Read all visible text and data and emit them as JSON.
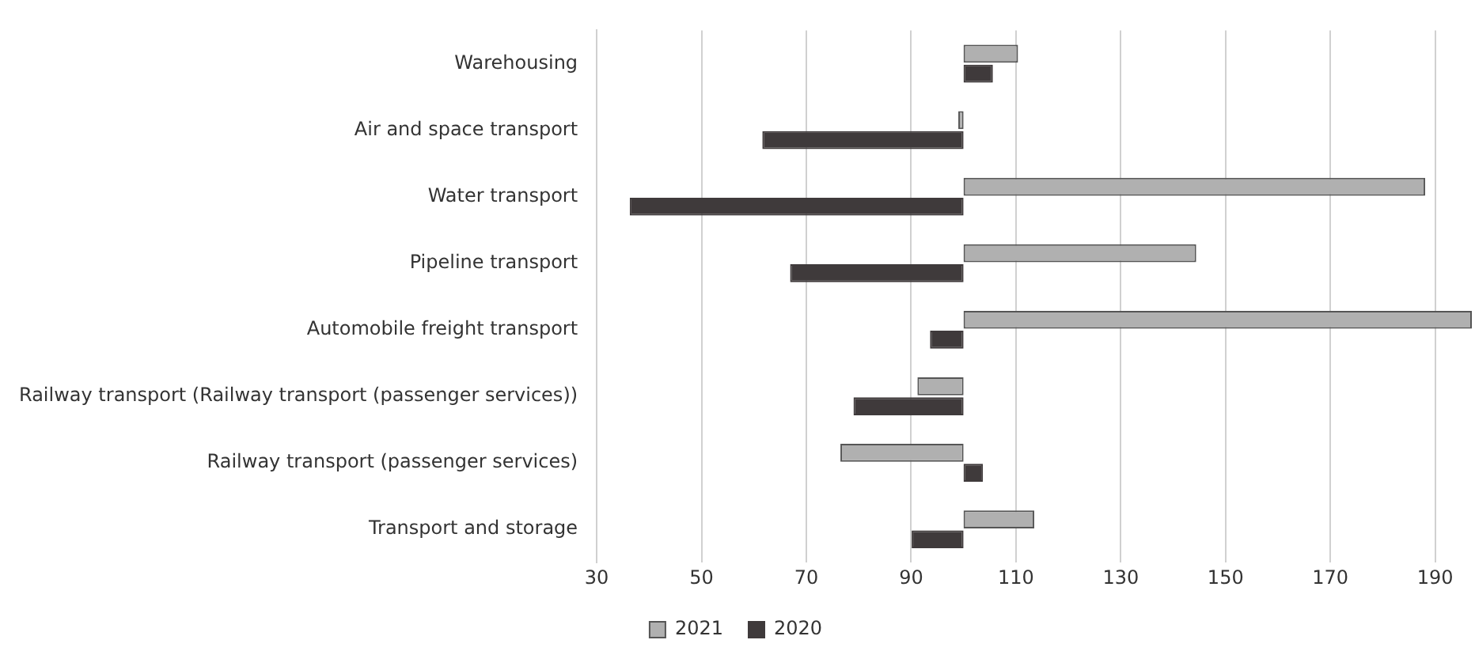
{
  "chart_data": {
    "type": "bar",
    "orientation": "horizontal",
    "categories": [
      "Warehousing",
      "Air and space transport",
      "Water transport",
      "Pipeline transport",
      "Automobile freight transport",
      "Railway transport (Railway transport (passenger services))",
      "Railway transport (passenger services)",
      "Transport and storage"
    ],
    "series": [
      {
        "name": "2021",
        "color": "#b0b0b0",
        "base": [
          100,
          100,
          100,
          100,
          100,
          100,
          100,
          100
        ],
        "values": [
          10.4,
          -1,
          88.1,
          44.4,
          97,
          -8.8,
          -23.5,
          13.5
        ]
      },
      {
        "name": "2020",
        "color": "#3f3a3b",
        "base": [
          100,
          100,
          100,
          100,
          100,
          100,
          100,
          100
        ],
        "values": [
          5.6,
          -38.4,
          -63.7,
          -33.1,
          -6.4,
          -21,
          3.7,
          -9.9
        ]
      }
    ],
    "xlim": [
      30,
      197
    ],
    "xticks": [
      30,
      50,
      70,
      90,
      110,
      130,
      150,
      170,
      190
    ],
    "grid": "x",
    "legend": "bottom"
  }
}
